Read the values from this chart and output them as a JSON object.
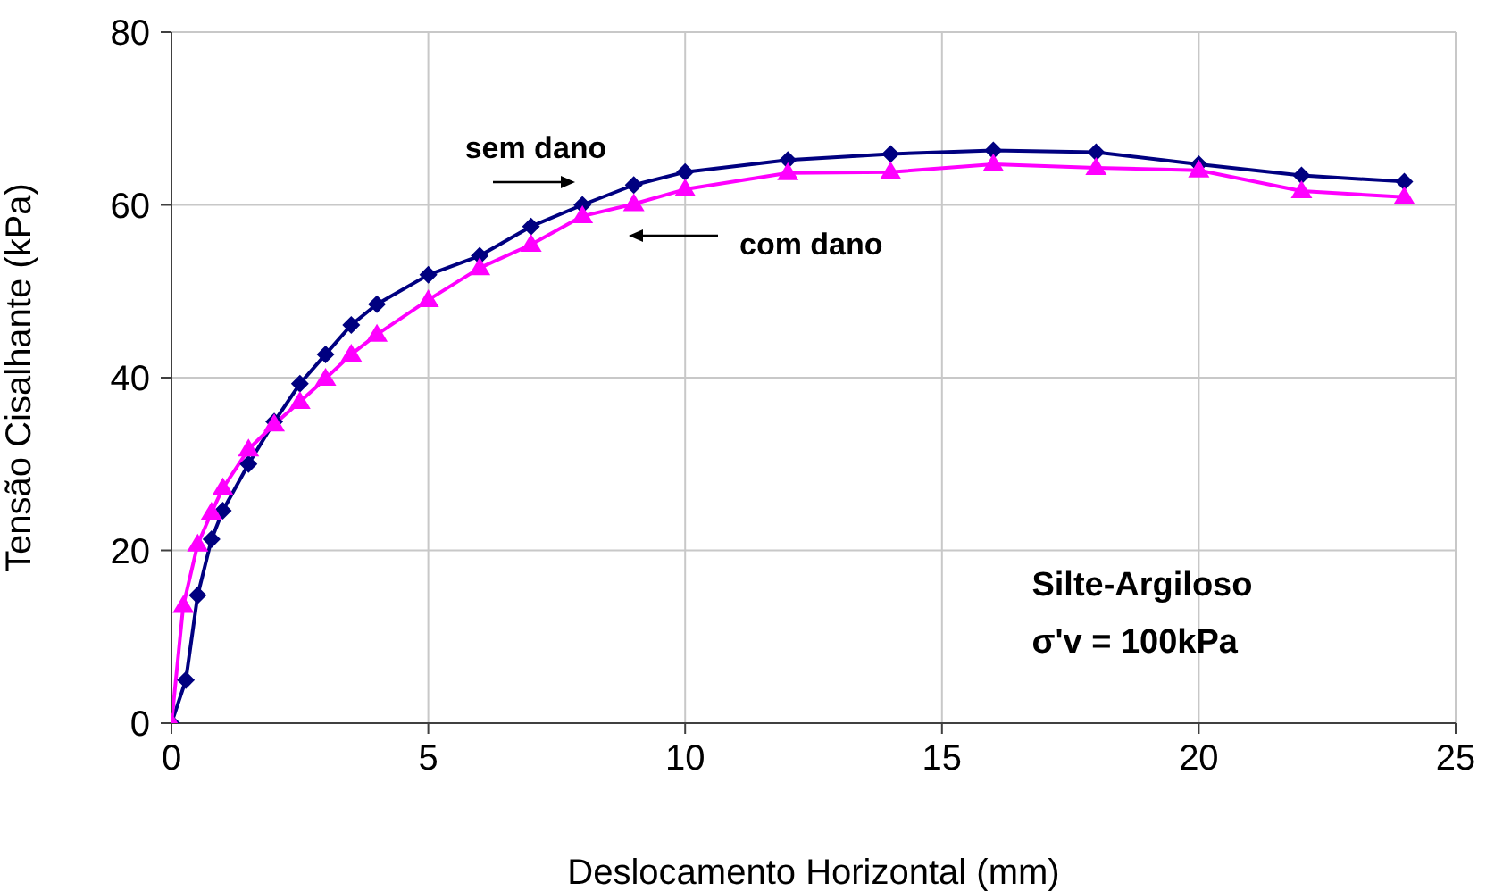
{
  "chart_data": {
    "type": "line",
    "xlabel": "Deslocamento Horizontal (mm)",
    "ylabel": "Tensão Cisalhante (kPa)",
    "xlim": [
      0,
      25
    ],
    "xticks": [
      0,
      5,
      10,
      15,
      20,
      25
    ],
    "ylim": [
      0,
      80
    ],
    "yticks": [
      0,
      20,
      40,
      60,
      80
    ],
    "grid": true,
    "series": [
      {
        "color": "#000080",
        "marker": "diamond",
        "x": [
          0,
          0.28,
          0.51,
          0.78,
          1,
          1.5,
          2,
          2.5,
          3,
          3.5,
          4,
          5,
          6,
          7,
          8,
          9,
          10,
          12,
          14,
          16,
          18,
          20,
          22,
          24
        ],
        "values": [
          0,
          5,
          14.8,
          21.3,
          24.6,
          30,
          34.9,
          39.3,
          42.7,
          46.1,
          48.5,
          51.9,
          54.1,
          57.5,
          60,
          62.3,
          63.8,
          65.2,
          65.9,
          66.3,
          66.1,
          64.7,
          63.4,
          62.7
        ]
      },
      {
        "color": "#ff00ff",
        "marker": "triangle",
        "x": [
          0,
          0.23,
          0.51,
          0.78,
          1,
          1.5,
          2,
          2.5,
          3,
          3.5,
          4,
          5,
          6,
          7,
          8,
          9,
          10,
          12,
          14,
          16,
          18,
          20,
          22,
          24
        ],
        "values": [
          0,
          13.6,
          20.7,
          24.4,
          27.2,
          31.7,
          34.6,
          37.2,
          39.9,
          42.7,
          45,
          49,
          52.7,
          55.4,
          58.7,
          60.1,
          61.8,
          63.7,
          63.8,
          64.7,
          64.3,
          64,
          61.6,
          60.9
        ]
      }
    ],
    "annotations": [
      "sem dano",
      "com dano",
      "Silte-Argiloso",
      "σ'v = 100kPa"
    ]
  }
}
